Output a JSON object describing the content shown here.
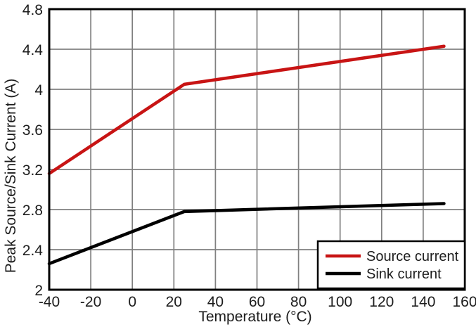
{
  "chart_data": {
    "type": "line",
    "title": "",
    "xlabel": "Temperature (°C)",
    "ylabel": "Peak Source/Sink Current (A)",
    "xlim": [
      -40,
      160
    ],
    "ylim": [
      2,
      4.8
    ],
    "x_ticks": [
      -40,
      -20,
      0,
      20,
      40,
      60,
      80,
      100,
      120,
      140,
      160
    ],
    "x_tick_labels": [
      "-40",
      "-20",
      "0",
      "20",
      "40",
      "60",
      "80",
      "100",
      "120",
      "140",
      "160"
    ],
    "y_ticks": [
      2,
      2.4,
      2.8,
      3.2,
      3.6,
      4,
      4.4,
      4.8
    ],
    "y_tick_labels": [
      "2",
      "2.4",
      "2.8",
      "3.2",
      "3.6",
      "4",
      "4.4",
      "4.8"
    ],
    "grid": true,
    "legend": {
      "position": "lower-right",
      "entries": [
        "Source current",
        "Sink current"
      ]
    },
    "series": [
      {
        "name": "Source current",
        "color": "#c81414",
        "x": [
          -40,
          25,
          150
        ],
        "y": [
          3.16,
          4.05,
          4.43
        ]
      },
      {
        "name": "Sink current",
        "color": "#000000",
        "x": [
          -40,
          25,
          150
        ],
        "y": [
          2.26,
          2.78,
          2.86
        ]
      }
    ],
    "colors": {
      "grid": "#808080",
      "axis": "#000000",
      "text": "#1d1d1d",
      "background": "#ffffff"
    }
  }
}
